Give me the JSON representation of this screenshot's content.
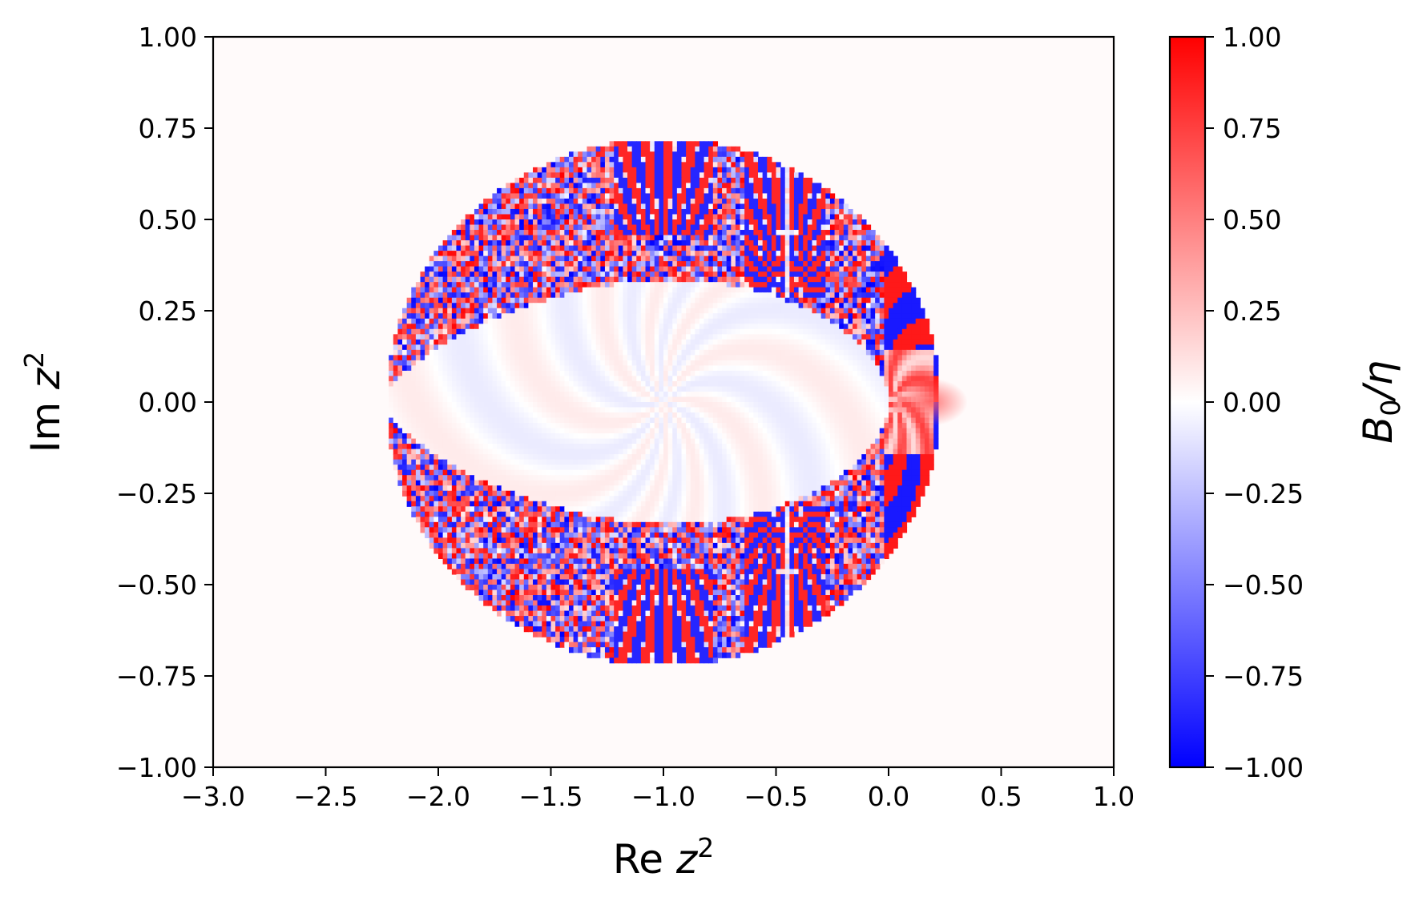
{
  "chart_data": {
    "type": "heatmap",
    "title": "",
    "xlabel": "Re z²",
    "xlabel_parts": {
      "main": "Re ",
      "var": "z",
      "sup": "2"
    },
    "ylabel": "Im z²",
    "ylabel_parts": {
      "main": "Im ",
      "var": "z",
      "sup": "2"
    },
    "xlim": [
      -3.0,
      1.0
    ],
    "ylim": [
      -1.0,
      1.0
    ],
    "x_ticks": [
      -3.0,
      -2.5,
      -2.0,
      -1.5,
      -1.0,
      -0.5,
      0.0,
      0.5,
      1.0
    ],
    "x_tick_labels": [
      "−3.0",
      "−2.5",
      "−2.0",
      "−1.5",
      "−1.0",
      "−0.5",
      "0.0",
      "0.5",
      "1.0"
    ],
    "y_ticks": [
      1.0,
      0.75,
      0.5,
      0.25,
      0.0,
      -0.25,
      -0.5,
      -0.75,
      -1.0
    ],
    "y_tick_labels": [
      "1.00",
      "0.75",
      "0.50",
      "0.25",
      "0.00",
      "−0.25",
      "−0.50",
      "−0.75",
      "−1.00"
    ],
    "grid": false,
    "colorbar": {
      "label": "B0/η",
      "label_parts": {
        "var": "B",
        "sub": "0",
        "rest": "/η"
      },
      "vmin": -1.0,
      "vmax": 1.0,
      "colormap": "bwr",
      "colors": {
        "low": "#0000ff",
        "mid": "#ffffff",
        "high": "#ff0000"
      },
      "ticks": [
        1.0,
        0.75,
        0.5,
        0.25,
        0.0,
        -0.25,
        -0.5,
        -0.75,
        -1.0
      ],
      "tick_labels": [
        "1.00",
        "0.75",
        "0.50",
        "0.25",
        "0.00",
        "−0.25",
        "−0.50",
        "−0.75",
        "−1.00"
      ]
    },
    "regions": {
      "outer_disc": {
        "center": [
          -1.0,
          0.0
        ],
        "rx": 1.23,
        "ry": 0.72,
        "value": "noisy ±1"
      },
      "inner_region": {
        "x_range": [
          -2.23,
          0.0
        ],
        "half_height": 0.38,
        "value_range": [
          -0.1,
          0.1
        ]
      },
      "hot_cusp": {
        "center": [
          0.08,
          0.0
        ],
        "value": 0.8
      },
      "background": {
        "value": 0.02
      }
    }
  }
}
